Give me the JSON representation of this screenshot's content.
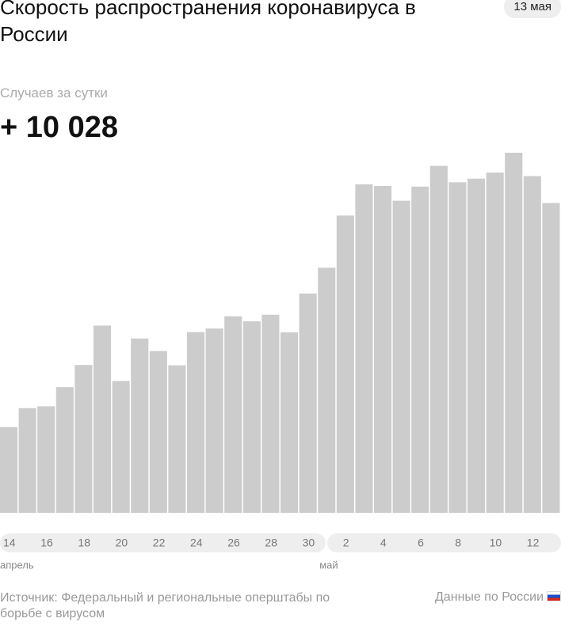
{
  "chart_data": {
    "type": "bar",
    "title": "Скорость распространения коронавируса в России",
    "date": "13 мая",
    "subtitle": "Случаев за сутки",
    "headline": "+ 10 028",
    "categories": [
      "14",
      null,
      "16",
      null,
      "18",
      null,
      "20",
      null,
      "22",
      null,
      "24",
      null,
      "26",
      null,
      "28",
      null,
      "30",
      null,
      "2",
      null,
      "4",
      null,
      "6",
      null,
      "8",
      null,
      "10",
      null,
      "12",
      null
    ],
    "values": [
      2774,
      3388,
      3448,
      4070,
      4785,
      6060,
      4268,
      5642,
      5236,
      4774,
      5849,
      5966,
      6361,
      6198,
      6411,
      5841,
      7099,
      7933,
      9623,
      10633,
      10581,
      10102,
      10559,
      11231,
      10699,
      10817,
      11012,
      11656,
      10899,
      10028
    ],
    "color": "#cccccc",
    "months": [
      {
        "label": "апрель",
        "start": 0
      },
      {
        "label": "май",
        "start": 17
      }
    ],
    "source": "Источник: Федеральный и региональные оперштабы по борьбе с вирусом",
    "region": "Данные по России"
  }
}
